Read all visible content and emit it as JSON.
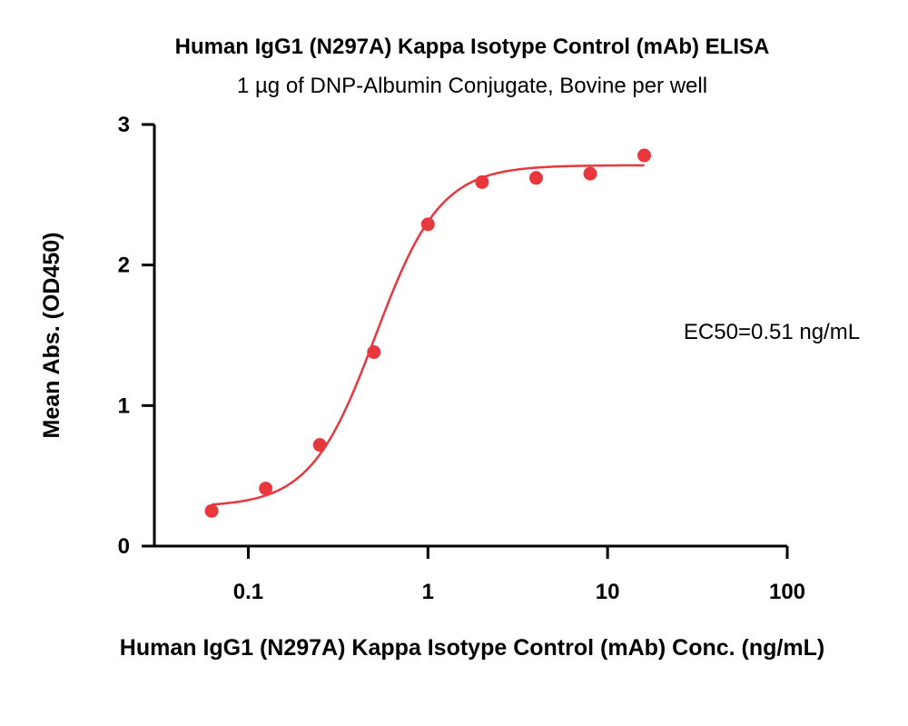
{
  "chart_data": {
    "type": "scatter",
    "title": "Human IgG1 (N297A) Kappa Isotype Control (mAb) ELISA",
    "subtitle": "1 µg of DNP-Albumin Conjugate, Bovine per well",
    "xlabel": "Human IgG1 (N297A) Kappa Isotype Control (mAb) Conc. (ng/mL)",
    "ylabel": "Mean Abs. (OD450)",
    "xscale": "log",
    "xlim": [
      0.03,
      100
    ],
    "ylim": [
      0,
      3
    ],
    "x_ticks": [
      0.1,
      1,
      10,
      100
    ],
    "x_tick_labels": [
      "0.1",
      "1",
      "10",
      "100"
    ],
    "y_ticks": [
      0,
      1,
      2,
      3
    ],
    "y_tick_labels": [
      "0",
      "1",
      "2",
      "3"
    ],
    "grid": false,
    "legend": "none",
    "series": [
      {
        "x": [
          0.0625,
          0.125,
          0.25,
          0.5,
          1,
          2,
          4,
          8,
          16
        ],
        "y": [
          0.25,
          0.41,
          0.72,
          1.38,
          2.29,
          2.59,
          2.62,
          2.65,
          2.78
        ],
        "color": "#e8383d",
        "fit": "4PL"
      }
    ],
    "fit_params": {
      "bottom": 0.28,
      "top": 2.71,
      "ec50": 0.51,
      "hill": 2.4
    },
    "annotations": [
      {
        "text": "EC50=0.51 ng/mL",
        "position": "right"
      }
    ]
  }
}
